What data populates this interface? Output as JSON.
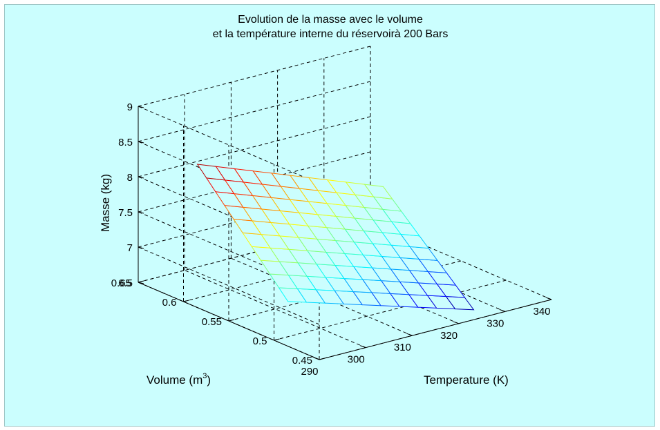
{
  "figure": {
    "background": "#cbfefe"
  },
  "chart_data": {
    "type": "surface",
    "title_lines": [
      "Evolution de la masse avec le volume",
      "et la température interne du réservoirà 200 Bars"
    ],
    "xlabel": "Temperature (K)",
    "ylabel": "Volume (m",
    "ylabel_sup": "3",
    "ylabel_close": ")",
    "zlabel": "Masse (kg)",
    "xlim": [
      290,
      340
    ],
    "ylim": [
      0.45,
      0.65
    ],
    "zlim": [
      6.5,
      9
    ],
    "xticks": [
      290,
      300,
      310,
      320,
      330,
      340
    ],
    "yticks": [
      0.45,
      0.5,
      0.55,
      0.6,
      0.65
    ],
    "zticks": [
      6.5,
      7,
      7.5,
      8,
      8.5,
      9
    ],
    "xtick_labels": [
      "290",
      "300",
      "310",
      "320",
      "330",
      "340"
    ],
    "ytick_labels": [
      "0.45",
      "0.5",
      "0.55",
      "0.6",
      "0.65"
    ],
    "ztick_labels": [
      "6.5",
      "7",
      "7.5",
      "8",
      "8.5",
      "9"
    ],
    "grid": true,
    "colormap": "jet",
    "surface": {
      "temperature_range": [
        293,
        333
      ],
      "volume_range": [
        0.5,
        0.6
      ],
      "grid_size": 11,
      "corner_mass": {
        "T_min_V_max": 8.4,
        "T_max_V_max": 7.4,
        "T_min_V_min": 7.0,
        "T_max_V_min": 6.2
      }
    }
  }
}
